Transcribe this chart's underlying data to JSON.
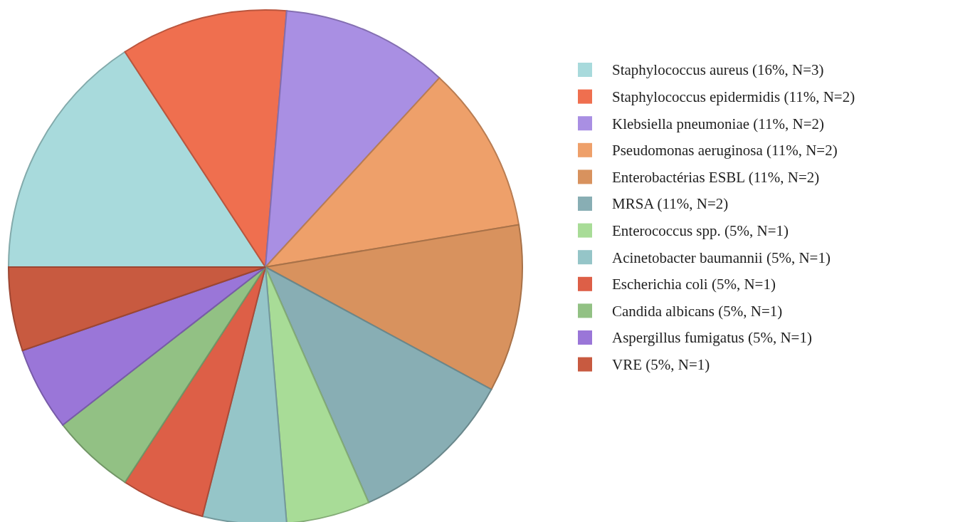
{
  "chart_data": {
    "type": "pie",
    "categories": [
      "Staphylococcus aureus (16%, N=3)",
      "Staphylococcus epidermidis (11%, N=2)",
      "Klebsiella pneumoniae (11%, N=2)",
      "Pseudomonas aeruginosa (11%, N=2)",
      "Enterobactérias ESBL (11%, N=2)",
      "MRSA (11%, N=2)",
      "Enterococcus spp. (5%, N=1)",
      "Acinetobacter baumannii (5%, N=1)",
      "Escherichia coli (5%, N=1)",
      "Candida albicans (5%, N=1)",
      "Aspergillus fumigatus (5%, N=1)",
      "VRE (5%, N=1)"
    ],
    "values": [
      3,
      2,
      2,
      2,
      2,
      2,
      1,
      1,
      1,
      1,
      1,
      1
    ],
    "colors": [
      "#a8dadc",
      "#ef6f4f",
      "#a98fe3",
      "#eea06a",
      "#d8925e",
      "#88aeb4",
      "#a8dc97",
      "#95c5c8",
      "#dd5f47",
      "#92c184",
      "#9a76d8",
      "#c85a40"
    ],
    "legend": "right"
  }
}
